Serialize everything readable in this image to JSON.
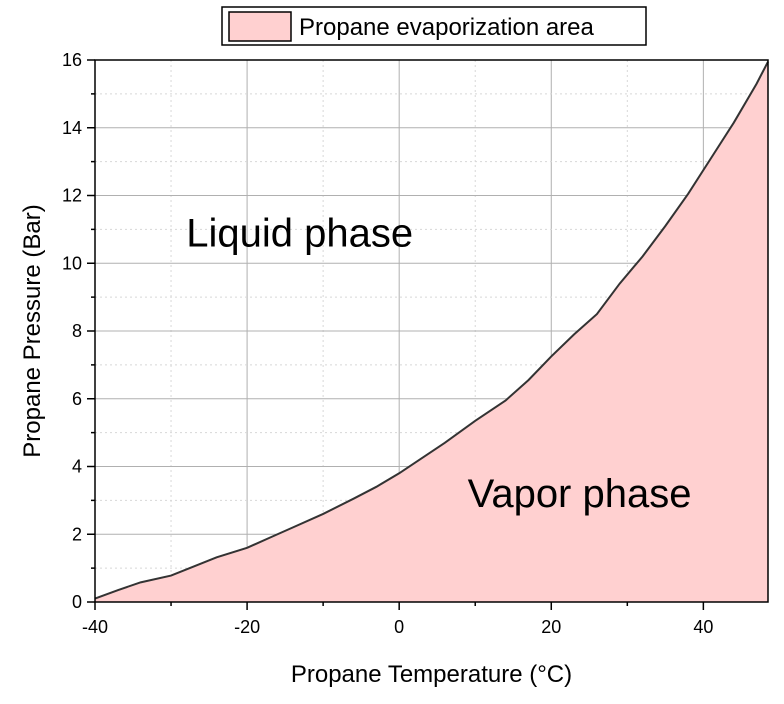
{
  "chart_data": {
    "type": "area",
    "legend": {
      "position": "top-center",
      "entries": [
        "Propane evaporization area"
      ]
    },
    "xlabel": "Propane Temperature (°C)",
    "ylabel": "Propane Pressure (Bar)",
    "xlim": [
      -40,
      48.5
    ],
    "ylim": [
      0,
      16
    ],
    "xticks": [
      -40,
      -20,
      0,
      20,
      40
    ],
    "yticks": [
      0,
      2,
      4,
      6,
      8,
      10,
      12,
      14,
      16
    ],
    "grid": true,
    "annotations": [
      {
        "text": "Liquid phase",
        "x": -28,
        "y": 10.5
      },
      {
        "text": "Vapor phase",
        "x": 9,
        "y": 2.8
      }
    ],
    "series": [
      {
        "name": "Propane evaporization area",
        "fill_color": "#ffd0d0",
        "line_color": "#333333",
        "x": [
          -40,
          -37,
          -34,
          -30,
          -27,
          -24,
          -20,
          -17,
          -14,
          -10,
          -6,
          -3,
          0,
          3,
          6,
          10,
          14,
          17,
          20,
          23,
          26,
          29,
          32,
          35,
          38,
          41,
          44,
          47,
          48.5
        ],
        "y": [
          0.1,
          0.35,
          0.58,
          0.78,
          1.05,
          1.32,
          1.6,
          1.9,
          2.2,
          2.6,
          3.05,
          3.4,
          3.8,
          4.25,
          4.7,
          5.35,
          5.95,
          6.55,
          7.25,
          7.9,
          8.5,
          9.4,
          10.2,
          11.1,
          12.05,
          13.1,
          14.15,
          15.3,
          15.95
        ]
      }
    ]
  }
}
